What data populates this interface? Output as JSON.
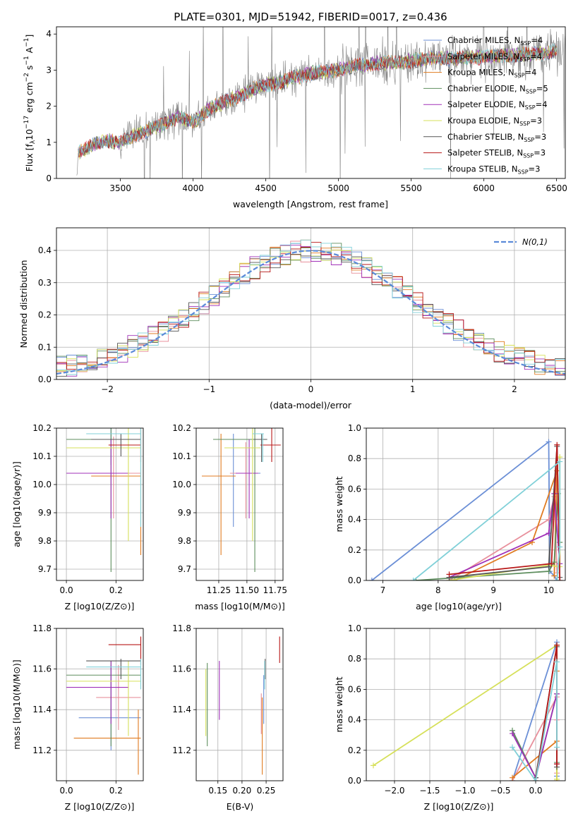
{
  "chart_data": [
    {
      "id": "spectrum",
      "type": "line",
      "title": "PLATE=0301, MJD=51942, FIBERID=0017, z=0.436",
      "xlabel": "wavelength [Angstrom, rest frame]",
      "ylabel": "Flux [f_λ 10^-17 erg cm^-2 s^-1 A^-1]",
      "xlim": [
        3060,
        6560
      ],
      "ylim": [
        0,
        4.2
      ],
      "xticks": [
        3500,
        4000,
        4500,
        5000,
        5500,
        6000,
        6500
      ],
      "yticks": [
        0,
        1,
        2,
        3,
        4
      ],
      "grid": false,
      "legend": "top-right",
      "observed_color": "#808080",
      "series": [
        {
          "name": "Chabrier MILES, N",
          "sub": "SSP",
          "tail": "=4",
          "color": "#6b8fd6"
        },
        {
          "name": "Salpeter MILES, N",
          "sub": "SSP",
          "tail": "=4",
          "color": "#e8909c"
        },
        {
          "name": "Kroupa MILES, N",
          "sub": "SSP",
          "tail": "=4",
          "color": "#e07b20"
        },
        {
          "name": "Chabrier ELODIE, N",
          "sub": "SSP",
          "tail": "=5",
          "color": "#5e8e5e"
        },
        {
          "name": "Salpeter ELODIE, N",
          "sub": "SSP",
          "tail": "=4",
          "color": "#a030b8"
        },
        {
          "name": "Kroupa ELODIE, N",
          "sub": "SSP",
          "tail": "=3",
          "color": "#d6e05a"
        },
        {
          "name": "Chabrier STELIB, N",
          "sub": "SSP",
          "tail": "=3",
          "color": "#555555"
        },
        {
          "name": "Salpeter STELIB, N",
          "sub": "SSP",
          "tail": "=3",
          "color": "#b81818"
        },
        {
          "name": "Kroupa STELIB, N",
          "sub": "SSP",
          "tail": "=3",
          "color": "#80d0d8"
        }
      ],
      "continuum_points": [
        [
          3200,
          0.05
        ],
        [
          3210,
          0.7
        ],
        [
          3300,
          0.9
        ],
        [
          3400,
          1.05
        ],
        [
          3500,
          1.0
        ],
        [
          3600,
          1.2
        ],
        [
          3700,
          1.35
        ],
        [
          3800,
          1.5
        ],
        [
          3900,
          1.7
        ],
        [
          4000,
          1.55
        ],
        [
          4100,
          1.9
        ],
        [
          4200,
          2.1
        ],
        [
          4300,
          2.25
        ],
        [
          4400,
          2.45
        ],
        [
          4500,
          2.6
        ],
        [
          4600,
          2.65
        ],
        [
          4700,
          2.8
        ],
        [
          4800,
          2.9
        ],
        [
          4900,
          2.95
        ],
        [
          5000,
          3.0
        ],
        [
          5100,
          3.1
        ],
        [
          5200,
          3.15
        ],
        [
          5300,
          3.2
        ],
        [
          5400,
          3.2
        ],
        [
          5500,
          3.25
        ],
        [
          5600,
          3.3
        ],
        [
          5700,
          3.35
        ],
        [
          5800,
          3.3
        ],
        [
          5900,
          3.35
        ],
        [
          6000,
          3.35
        ],
        [
          6100,
          3.4
        ],
        [
          6200,
          3.4
        ],
        [
          6300,
          3.45
        ],
        [
          6400,
          3.45
        ],
        [
          6500,
          3.55
        ]
      ]
    },
    {
      "id": "residual-hist",
      "type": "histogram",
      "xlabel": "(data-model)/error",
      "ylabel": "Normed distribution",
      "xlim": [
        -2.5,
        2.5
      ],
      "ylim": [
        0,
        0.47
      ],
      "xticks": [
        -2,
        -1,
        0,
        1,
        2
      ],
      "yticks": [
        0.0,
        0.1,
        0.2,
        0.3,
        0.4
      ],
      "grid": true,
      "legend": "top-right",
      "gauss": {
        "label": "N(0,1)",
        "color": "#5b8ad8"
      }
    },
    {
      "id": "age-vs-Z",
      "type": "scatter",
      "xlabel": "Z [log10(Z/Z⊙)]",
      "ylabel": "age  [log10(age/yr)]",
      "xlim": [
        -0.04,
        0.31
      ],
      "ylim": [
        9.66,
        10.2
      ],
      "xticks": [
        0.0,
        0.2
      ],
      "yticks": [
        9.7,
        9.8,
        9.9,
        10.0,
        10.1,
        10.2
      ],
      "grid": true,
      "points": [
        {
          "x": 0.18,
          "y": 10.16,
          "xl": -0.0,
          "xh": 0.3,
          "yl": 10.07,
          "yh": 10.2,
          "c": "#6b8fd6"
        },
        {
          "x": 0.19,
          "y": 10.04,
          "xl": 0.1,
          "xh": 0.3,
          "yl": 9.88,
          "yh": 10.17,
          "c": "#e8909c"
        },
        {
          "x": 0.3,
          "y": 10.03,
          "xl": 0.1,
          "xh": 0.3,
          "yl": 9.75,
          "yh": 10.2,
          "c": "#e07b20"
        },
        {
          "x": 0.18,
          "y": 10.16,
          "xl": -0.0,
          "xh": 0.3,
          "yl": 9.69,
          "yh": 10.2,
          "c": "#5e8e5e"
        },
        {
          "x": 0.18,
          "y": 10.04,
          "xl": -0.0,
          "xh": 0.25,
          "yl": 9.88,
          "yh": 10.16,
          "c": "#a030b8"
        },
        {
          "x": 0.25,
          "y": 10.13,
          "xl": -0.0,
          "xh": 0.3,
          "yl": 9.8,
          "yh": 10.2,
          "c": "#d6e05a"
        },
        {
          "x": 0.22,
          "y": 10.16,
          "xl": 0.1,
          "xh": 0.3,
          "yl": 10.1,
          "yh": 10.18,
          "c": "#555555"
        },
        {
          "x": 0.3,
          "y": 10.14,
          "xl": 0.17,
          "xh": 0.3,
          "yl": 10.08,
          "yh": 10.2,
          "c": "#b81818"
        },
        {
          "x": 0.3,
          "y": 10.18,
          "xl": 0.08,
          "xh": 0.3,
          "yl": 9.85,
          "yh": 10.2,
          "c": "#80d0d8"
        }
      ]
    },
    {
      "id": "age-vs-mass",
      "type": "scatter",
      "xlabel": "mass [log10(M/M⊙)]",
      "ylabel": "",
      "xlim": [
        11.05,
        11.82
      ],
      "ylim": [
        9.66,
        10.2
      ],
      "xticks": [
        11.25,
        11.5,
        11.75
      ],
      "yticks": [
        9.7,
        9.8,
        9.9,
        10.0,
        10.1,
        10.2
      ],
      "grid": true,
      "points": [
        {
          "x": 11.38,
          "y": 10.04,
          "xl": 11.35,
          "xh": 11.62,
          "yl": 9.85,
          "yh": 10.18,
          "c": "#6b8fd6"
        },
        {
          "x": 11.49,
          "y": 10.04,
          "xl": 11.35,
          "xh": 11.6,
          "yl": 9.88,
          "yh": 10.15,
          "c": "#e8909c"
        },
        {
          "x": 11.27,
          "y": 10.03,
          "xl": 11.1,
          "xh": 11.4,
          "yl": 9.75,
          "yh": 10.18,
          "c": "#e07b20"
        },
        {
          "x": 11.57,
          "y": 10.16,
          "xl": 11.2,
          "xh": 11.62,
          "yl": 9.69,
          "yh": 10.2,
          "c": "#5e8e5e"
        },
        {
          "x": 11.52,
          "y": 10.04,
          "xl": 11.4,
          "xh": 11.6,
          "yl": 9.88,
          "yh": 10.16,
          "c": "#a030b8"
        },
        {
          "x": 11.55,
          "y": 10.13,
          "xl": 11.3,
          "xh": 11.62,
          "yl": 9.8,
          "yh": 10.2,
          "c": "#d6e05a"
        },
        {
          "x": 11.63,
          "y": 10.16,
          "xl": 11.56,
          "xh": 11.68,
          "yl": 10.08,
          "yh": 10.18,
          "c": "#555555"
        },
        {
          "x": 11.72,
          "y": 10.14,
          "xl": 11.62,
          "xh": 11.8,
          "yl": 10.08,
          "yh": 10.2,
          "c": "#b81818"
        },
        {
          "x": 11.64,
          "y": 10.18,
          "xl": 11.55,
          "xh": 11.65,
          "yl": 10.08,
          "yh": 10.18,
          "c": "#80d0d8"
        }
      ]
    },
    {
      "id": "weight-vs-age",
      "type": "line",
      "xlabel": "age  [log10(age/yr)]",
      "ylabel": "mass weight",
      "xlim": [
        6.7,
        10.3
      ],
      "ylim": [
        0,
        1.0
      ],
      "xticks": [
        7,
        8,
        9,
        10
      ],
      "yticks": [
        0.0,
        0.2,
        0.4,
        0.6,
        0.8,
        1.0
      ],
      "grid": true,
      "series": [
        {
          "c": "#6b8fd6",
          "pts": [
            [
              6.8,
              0.0
            ],
            [
              10.0,
              0.91
            ],
            [
              10.02,
              0.06
            ],
            [
              10.1,
              0.03
            ],
            [
              10.15,
              0.0
            ]
          ]
        },
        {
          "c": "#e8909c",
          "pts": [
            [
              8.2,
              0.0
            ],
            [
              10.0,
              0.4
            ],
            [
              10.1,
              0.55
            ],
            [
              10.15,
              0.05
            ]
          ]
        },
        {
          "c": "#e07b20",
          "pts": [
            [
              8.3,
              0.0
            ],
            [
              9.7,
              0.25
            ],
            [
              10.15,
              0.72
            ],
            [
              10.1,
              0.03
            ]
          ]
        },
        {
          "c": "#5e8e5e",
          "pts": [
            [
              7.6,
              0.0
            ],
            [
              10.0,
              0.06
            ],
            [
              10.1,
              0.12
            ],
            [
              10.17,
              0.57
            ],
            [
              10.2,
              0.25
            ]
          ]
        },
        {
          "c": "#a030b8",
          "pts": [
            [
              8.2,
              0.02
            ],
            [
              10.0,
              0.31
            ],
            [
              10.1,
              0.57
            ],
            [
              10.2,
              0.11
            ]
          ]
        },
        {
          "c": "#d6e05a",
          "pts": [
            [
              8.2,
              0.0
            ],
            [
              10.0,
              0.1
            ],
            [
              10.2,
              0.09
            ],
            [
              10.2,
              0.81
            ]
          ]
        },
        {
          "c": "#555555",
          "pts": [
            [
              8.2,
              0.02
            ],
            [
              10.0,
              0.09
            ],
            [
              10.15,
              0.88
            ],
            [
              10.2,
              0.02
            ]
          ]
        },
        {
          "c": "#b81818",
          "pts": [
            [
              8.2,
              0.04
            ],
            [
              10.05,
              0.11
            ],
            [
              10.15,
              0.89
            ],
            [
              10.2,
              0.0
            ]
          ]
        },
        {
          "c": "#80d0d8",
          "pts": [
            [
              7.55,
              0.0
            ],
            [
              10.2,
              0.78
            ],
            [
              10.2,
              0.22
            ],
            [
              10.15,
              0.0
            ]
          ]
        }
      ]
    },
    {
      "id": "mass-vs-Z",
      "type": "scatter",
      "xlabel": "Z [log10(Z/Z⊙)]",
      "ylabel": "mass [log10(M/M⊙)]",
      "xlim": [
        -0.04,
        0.31
      ],
      "ylim": [
        11.05,
        11.8
      ],
      "xticks": [
        0.0,
        0.2
      ],
      "yticks": [
        11.2,
        11.4,
        11.6,
        11.8
      ],
      "grid": true,
      "points": [
        {
          "x": 0.18,
          "y": 11.36,
          "xl": 0.05,
          "xh": 0.3,
          "yl": 11.2,
          "yh": 11.62,
          "c": "#6b8fd6"
        },
        {
          "x": 0.21,
          "y": 11.46,
          "xl": 0.12,
          "xh": 0.3,
          "yl": 11.3,
          "yh": 11.62,
          "c": "#e8909c"
        },
        {
          "x": 0.29,
          "y": 11.26,
          "xl": 0.03,
          "xh": 0.3,
          "yl": 11.08,
          "yh": 11.4,
          "c": "#e07b20"
        },
        {
          "x": 0.18,
          "y": 11.57,
          "xl": 0.0,
          "xh": 0.3,
          "yl": 11.22,
          "yh": 11.64,
          "c": "#5e8e5e"
        },
        {
          "x": 0.18,
          "y": 11.51,
          "xl": 0.0,
          "xh": 0.25,
          "yl": 11.33,
          "yh": 11.64,
          "c": "#a030b8"
        },
        {
          "x": 0.25,
          "y": 11.54,
          "xl": 0.0,
          "xh": 0.3,
          "yl": 11.27,
          "yh": 11.64,
          "c": "#d6e05a"
        },
        {
          "x": 0.22,
          "y": 11.64,
          "xl": 0.08,
          "xh": 0.3,
          "yl": 11.55,
          "yh": 11.65,
          "c": "#555555"
        },
        {
          "x": 0.3,
          "y": 11.72,
          "xl": 0.17,
          "xh": 0.3,
          "yl": 11.62,
          "yh": 11.76,
          "c": "#b81818"
        },
        {
          "x": 0.3,
          "y": 11.61,
          "xl": 0.08,
          "xh": 0.3,
          "yl": 11.5,
          "yh": 11.65,
          "c": "#80d0d8"
        }
      ]
    },
    {
      "id": "mass-vs-EBV",
      "type": "scatter",
      "xlabel": "E(B-V)",
      "ylabel": "",
      "xlim": [
        0.105,
        0.285
      ],
      "ylim": [
        11.05,
        11.8
      ],
      "xticks": [
        0.15,
        0.2,
        0.25
      ],
      "yticks": [
        11.2,
        11.4,
        11.6,
        11.8
      ],
      "grid": true,
      "points": [
        {
          "x": 0.245,
          "y": 11.45,
          "yl": 11.33,
          "yh": 11.57,
          "c": "#6b8fd6"
        },
        {
          "x": 0.24,
          "y": 11.4,
          "yl": 11.28,
          "yh": 11.48,
          "c": "#e8909c"
        },
        {
          "x": 0.242,
          "y": 11.26,
          "yl": 11.08,
          "yh": 11.46,
          "c": "#e07b20"
        },
        {
          "x": 0.128,
          "y": 11.43,
          "yl": 11.22,
          "yh": 11.63,
          "c": "#5e8e5e"
        },
        {
          "x": 0.153,
          "y": 11.5,
          "yl": 11.35,
          "yh": 11.64,
          "c": "#a030b8"
        },
        {
          "x": 0.125,
          "y": 11.45,
          "yl": 11.27,
          "yh": 11.6,
          "c": "#d6e05a"
        },
        {
          "x": 0.248,
          "y": 11.6,
          "yl": 11.55,
          "yh": 11.65,
          "c": "#555555"
        },
        {
          "x": 0.278,
          "y": 11.7,
          "yl": 11.63,
          "yh": 11.76,
          "c": "#b81818"
        },
        {
          "x": 0.247,
          "y": 11.55,
          "yl": 11.5,
          "yh": 11.64,
          "c": "#80d0d8"
        }
      ]
    },
    {
      "id": "weight-vs-Z",
      "type": "line",
      "xlabel": "Z [log10(Z/Z⊙)]",
      "ylabel": "mass weight",
      "xlim": [
        -2.4,
        0.42
      ],
      "ylim": [
        0,
        1.0
      ],
      "xticks": [
        -2.0,
        -1.5,
        -1.0,
        -0.5,
        0.0
      ],
      "yticks": [
        0.0,
        0.2,
        0.4,
        0.6,
        0.8,
        1.0
      ],
      "grid": true,
      "series": [
        {
          "c": "#6b8fd6",
          "pts": [
            [
              -0.33,
              0.0
            ],
            [
              0.3,
              0.91
            ],
            [
              0.3,
              0.03
            ]
          ]
        },
        {
          "c": "#e8909c",
          "pts": [
            [
              -0.33,
              0.0
            ],
            [
              0.3,
              0.55
            ],
            [
              0.3,
              0.4
            ],
            [
              0.3,
              0.05
            ]
          ]
        },
        {
          "c": "#e07b20",
          "pts": [
            [
              -0.33,
              0.02
            ],
            [
              0.3,
              0.26
            ],
            [
              0.3,
              0.72
            ],
            [
              0.3,
              0.0
            ]
          ]
        },
        {
          "c": "#5e8e5e",
          "pts": [
            [
              -0.33,
              0.33
            ],
            [
              0.0,
              0.02
            ],
            [
              0.3,
              0.57
            ],
            [
              0.3,
              0.12
            ]
          ]
        },
        {
          "c": "#a030b8",
          "pts": [
            [
              -0.33,
              0.31
            ],
            [
              0.0,
              0.02
            ],
            [
              0.3,
              0.57
            ],
            [
              0.3,
              0.11
            ]
          ]
        },
        {
          "c": "#d6e05a",
          "pts": [
            [
              -2.3,
              0.1
            ],
            [
              0.3,
              0.89
            ],
            [
              0.3,
              0.01
            ]
          ]
        },
        {
          "c": "#555555",
          "pts": [
            [
              0.0,
              0.02
            ],
            [
              0.3,
              0.88
            ],
            [
              0.3,
              0.09
            ]
          ]
        },
        {
          "c": "#b81818",
          "pts": [
            [
              0.0,
              0.0
            ],
            [
              0.3,
              0.89
            ],
            [
              0.3,
              0.11
            ]
          ]
        },
        {
          "c": "#80d0d8",
          "pts": [
            [
              -0.33,
              0.22
            ],
            [
              0.0,
              0.0
            ],
            [
              0.3,
              0.78
            ],
            [
              0.3,
              0.22
            ]
          ]
        }
      ]
    }
  ]
}
